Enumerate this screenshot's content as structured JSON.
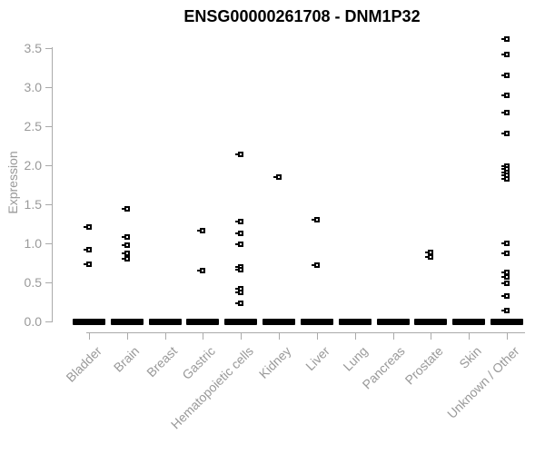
{
  "colors": {
    "point": "#000000",
    "axis_line": "#aaaaaa",
    "axis_text": "#999999",
    "title_text": "#000000",
    "background": "#ffffff"
  },
  "chart_data": {
    "type": "scatter",
    "title": "ENSG00000261708 - DNM1P32",
    "xlabel": "",
    "ylabel": "Expression",
    "ylim": [
      0,
      3.5
    ],
    "yticks": [
      0.0,
      0.5,
      1.0,
      1.5,
      2.0,
      2.5,
      3.0,
      3.5
    ],
    "ytick_labels": [
      "0.0",
      "0.5",
      "1.0",
      "1.5",
      "2.0",
      "2.5",
      "3.0",
      "3.5"
    ],
    "grid": false,
    "legend": "none",
    "marker_style": "small open black square with short left tick",
    "x_labels_rotation_deg": 45,
    "categories": [
      "Bladder",
      "Brain",
      "Breast",
      "Gastric",
      "Hematopoietic cells",
      "Kidney",
      "Liver",
      "Lung",
      "Pancreas",
      "Prostate",
      "Skin",
      "Unknown / Other"
    ],
    "series": [
      {
        "name": "Bladder",
        "values": [
          1.21,
          0.92,
          0.73
        ]
      },
      {
        "name": "Brain",
        "values": [
          1.44,
          1.08,
          0.97,
          0.87,
          0.8
        ]
      },
      {
        "name": "Breast",
        "values": []
      },
      {
        "name": "Gastric",
        "values": [
          1.16,
          0.65
        ]
      },
      {
        "name": "Hematopoietic cells",
        "values": [
          2.14,
          1.28,
          1.12,
          0.98,
          0.7,
          0.66,
          0.42,
          0.37,
          0.23
        ]
      },
      {
        "name": "Kidney",
        "values": [
          1.85
        ]
      },
      {
        "name": "Liver",
        "values": [
          1.3,
          0.72
        ]
      },
      {
        "name": "Lung",
        "values": []
      },
      {
        "name": "Pancreas",
        "values": []
      },
      {
        "name": "Prostate",
        "values": [
          0.88,
          0.82
        ]
      },
      {
        "name": "Skin",
        "values": []
      },
      {
        "name": "Unknown / Other",
        "values": [
          3.61,
          3.42,
          3.15,
          2.89,
          2.67,
          2.4,
          1.99,
          1.95,
          1.91,
          1.87,
          1.82,
          1.0,
          0.87,
          0.62,
          0.57,
          0.49,
          0.32,
          0.14
        ]
      }
    ],
    "zero_cluster": {
      "value": 0.0,
      "all_categories": true,
      "note": "dense cluster of overlapping points at 0.0 rendered as a thick black dash in every category"
    }
  }
}
